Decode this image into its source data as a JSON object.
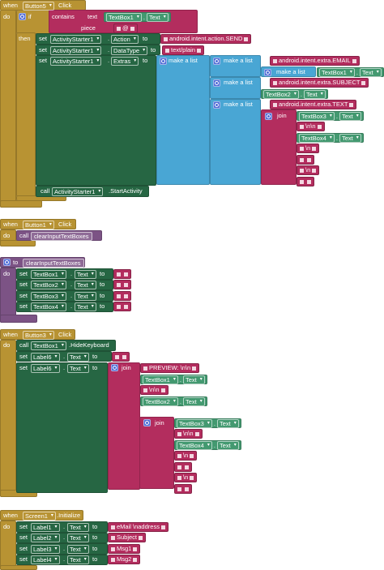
{
  "blocks": [
    {
      "rows": [
        [
          "when",
          "Button5",
          "Click"
        ],
        [
          "do",
          "if",
          "contains",
          "text",
          "TextBox1",
          ".",
          "Text"
        ],
        [
          "piece",
          "@"
        ],
        [
          "then",
          "set",
          "ActivityStarter1",
          ".",
          "Action",
          "to",
          "android.intent.action.SEND"
        ],
        [
          "set",
          "ActivityStarter1",
          ".",
          "DataType",
          "to",
          "text/plain"
        ],
        [
          "set",
          "ActivityStarter1",
          ".",
          "Extras",
          "to",
          "make a list",
          "make a list",
          "android.intent.extra.EMAIL"
        ],
        [
          "make a list",
          "TextBox1",
          ".",
          "Text"
        ],
        [
          "make a list",
          "android.intent.extra.SUBJECT"
        ],
        [
          "TextBox2",
          ".",
          "Text"
        ],
        [
          "make a list",
          "android.intent.extra.TEXT"
        ],
        [
          "join",
          "TextBox3",
          ".",
          "Text"
        ],
        [
          "\\n\\n"
        ],
        [
          "TextBox4",
          ".",
          "Text"
        ],
        [
          "\\n"
        ],
        [
          "\\n"
        ],
        [
          "call",
          "ActivityStarter1",
          ".StartActivity"
        ]
      ]
    },
    {
      "rows": [
        [
          "when",
          "Button1",
          "Click"
        ],
        [
          "do",
          "call",
          "clearInputTextBoxes"
        ]
      ]
    },
    {
      "rows": [
        [
          "to",
          "clearInputTextBoxes"
        ],
        [
          "do",
          "set",
          "TextBox1",
          ".",
          "Text",
          "to"
        ],
        [
          "set",
          "TextBox2",
          ".",
          "Text",
          "to"
        ],
        [
          "set",
          "TextBox3",
          ".",
          "Text",
          "to"
        ],
        [
          "set",
          "TextBox4",
          ".",
          "Text",
          "to"
        ]
      ]
    },
    {
      "rows": [
        [
          "when",
          "Button3",
          "Click"
        ],
        [
          "do",
          "call",
          "TextBox1",
          ".HideKeyboard"
        ],
        [
          "set",
          "Label6",
          ".",
          "Text",
          "to"
        ],
        [
          "set",
          "Label6",
          ".",
          "Text",
          "to",
          "join",
          "PREVIEW: \\n\\n"
        ],
        [
          "TextBox1",
          ".",
          "Text"
        ],
        [
          "\\n\\n"
        ],
        [
          "TextBox2",
          ".",
          "Text"
        ],
        [
          "join",
          "TextBox3",
          ".",
          "Text"
        ],
        [
          "\\n\\n"
        ],
        [
          "TextBox4",
          ".",
          "Text"
        ],
        [
          "\\n"
        ],
        [
          "\\n"
        ]
      ]
    },
    {
      "rows": [
        [
          "when",
          "Screen1",
          ".Initialize"
        ],
        [
          "do",
          "set",
          "Label1",
          ".",
          "Text",
          "to",
          "eMail \\naddress"
        ],
        [
          "set",
          "Label2",
          ".",
          "Text",
          "to",
          "Subject"
        ],
        [
          "set",
          "Label3",
          ".",
          "Text",
          "to",
          "Msg1"
        ],
        [
          "set",
          "Label4",
          ".",
          "Text",
          "to",
          "Msg2"
        ]
      ]
    }
  ]
}
